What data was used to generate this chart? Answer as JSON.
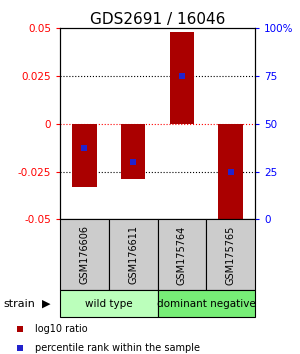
{
  "title": "GDS2691 / 16046",
  "samples": [
    "GSM176606",
    "GSM176611",
    "GSM175764",
    "GSM175765"
  ],
  "log10_ratios": [
    -0.033,
    -0.029,
    0.048,
    -0.055
  ],
  "percentile_ranks": [
    37.5,
    30.0,
    75.0,
    25.0
  ],
  "ylim": [
    -0.05,
    0.05
  ],
  "yticks_left": [
    -0.05,
    -0.025,
    0,
    0.025,
    0.05
  ],
  "yticks_right": [
    0,
    25,
    50,
    75,
    100
  ],
  "hlines_dotted": [
    -0.025,
    0.025
  ],
  "hline_red": 0,
  "bar_color": "#aa0000",
  "dot_color": "#2222cc",
  "bar_width": 0.5,
  "strain_groups": [
    {
      "label": "wild type",
      "samples": [
        0,
        1
      ],
      "color": "#bbffbb"
    },
    {
      "label": "dominant negative",
      "samples": [
        2,
        3
      ],
      "color": "#77ee77"
    }
  ],
  "legend_items": [
    {
      "color": "#aa0000",
      "marker": "s",
      "label": "log10 ratio"
    },
    {
      "color": "#2222cc",
      "marker": "s",
      "label": "percentile rank within the sample"
    }
  ],
  "strain_label": "strain",
  "title_fontsize": 11,
  "tick_fontsize": 7.5,
  "sample_fontsize": 7,
  "strain_fontsize": 7.5,
  "legend_fontsize": 7
}
